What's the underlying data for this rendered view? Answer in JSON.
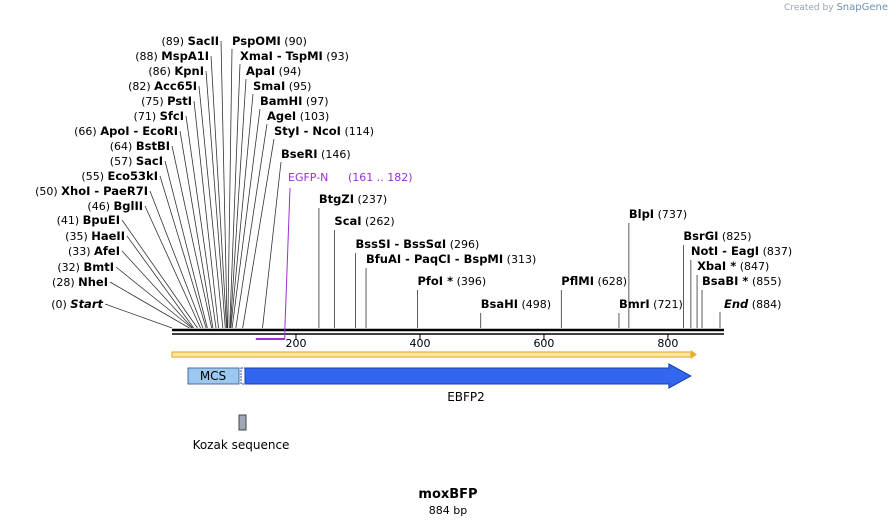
{
  "credit": {
    "prefix": "Created by",
    "brand": "SnapGene"
  },
  "plasmid": {
    "name": "moxBFP",
    "length_label": "884 bp",
    "length": 884
  },
  "colors": {
    "sites": "#000000",
    "primer": "#9b30d0",
    "orf": "#3366ee",
    "mcs": "#9cc8f0",
    "kozak": "#a0a8b8",
    "ruler": "#e8b030"
  },
  "ruler": {
    "ticks": [
      200,
      400,
      600,
      800
    ]
  },
  "sites": [
    {
      "pos": 0,
      "pos_text": "(0)",
      "names": [
        "Start"
      ],
      "italic": true,
      "side": "left"
    },
    {
      "pos": 28,
      "pos_text": "(28)",
      "names": [
        "NheI"
      ],
      "side": "left"
    },
    {
      "pos": 32,
      "pos_text": "(32)",
      "names": [
        "BmtI"
      ],
      "side": "left"
    },
    {
      "pos": 33,
      "pos_text": "(33)",
      "names": [
        "AfeI"
      ],
      "side": "left"
    },
    {
      "pos": 35,
      "pos_text": "(35)",
      "names": [
        "HaeII"
      ],
      "side": "left"
    },
    {
      "pos": 41,
      "pos_text": "(41)",
      "names": [
        "BpuEI"
      ],
      "side": "left"
    },
    {
      "pos": 46,
      "pos_text": "(46)",
      "names": [
        "BglII"
      ],
      "side": "left"
    },
    {
      "pos": 50,
      "pos_text": "(50)",
      "names": [
        "XhoI",
        "PaeR7I"
      ],
      "side": "left"
    },
    {
      "pos": 55,
      "pos_text": "(55)",
      "names": [
        "Eco53kI"
      ],
      "side": "left"
    },
    {
      "pos": 57,
      "pos_text": "(57)",
      "names": [
        "SacI"
      ],
      "side": "left"
    },
    {
      "pos": 64,
      "pos_text": "(64)",
      "names": [
        "BstBI"
      ],
      "side": "left"
    },
    {
      "pos": 66,
      "pos_text": "(66)",
      "names": [
        "ApoI",
        "EcoRI"
      ],
      "side": "left"
    },
    {
      "pos": 71,
      "pos_text": "(71)",
      "names": [
        "SfcI"
      ],
      "side": "left"
    },
    {
      "pos": 75,
      "pos_text": "(75)",
      "names": [
        "PstI"
      ],
      "side": "left"
    },
    {
      "pos": 82,
      "pos_text": "(82)",
      "names": [
        "Acc65I"
      ],
      "side": "left"
    },
    {
      "pos": 86,
      "pos_text": "(86)",
      "names": [
        "KpnI"
      ],
      "side": "left"
    },
    {
      "pos": 88,
      "pos_text": "(88)",
      "names": [
        "MspA1I"
      ],
      "side": "left"
    },
    {
      "pos": 89,
      "pos_text": "(89)",
      "names": [
        "SacII"
      ],
      "side": "left"
    },
    {
      "pos": 90,
      "pos_text": "(90)",
      "names": [
        "PspOMI"
      ],
      "side": "right"
    },
    {
      "pos": 93,
      "pos_text": "(93)",
      "names": [
        "XmaI",
        "TspMI"
      ],
      "side": "right"
    },
    {
      "pos": 94,
      "pos_text": "(94)",
      "names": [
        "ApaI"
      ],
      "side": "right"
    },
    {
      "pos": 95,
      "pos_text": "(95)",
      "names": [
        "SmaI"
      ],
      "side": "right"
    },
    {
      "pos": 97,
      "pos_text": "(97)",
      "names": [
        "BamHI"
      ],
      "side": "right"
    },
    {
      "pos": 103,
      "pos_text": "(103)",
      "names": [
        "AgeI"
      ],
      "side": "right"
    },
    {
      "pos": 114,
      "pos_text": "(114)",
      "names": [
        "StyI",
        "NcoI"
      ],
      "side": "right"
    },
    {
      "pos": 146,
      "pos_text": "(146)",
      "names": [
        "BseRI"
      ],
      "side": "right"
    },
    {
      "pos": 237,
      "pos_text": "(237)",
      "names": [
        "BtgZI"
      ],
      "side": "right"
    },
    {
      "pos": 262,
      "pos_text": "(262)",
      "names": [
        "ScaI"
      ],
      "side": "right"
    },
    {
      "pos": 296,
      "pos_text": "(296)",
      "names": [
        "BssSI",
        "BssSαI"
      ],
      "side": "right"
    },
    {
      "pos": 313,
      "pos_text": "(313)",
      "names": [
        "BfuAI",
        "PaqCI",
        "BspMI"
      ],
      "side": "right"
    },
    {
      "pos": 396,
      "pos_text": "(396)",
      "names": [
        "PfoI *"
      ],
      "side": "right"
    },
    {
      "pos": 498,
      "pos_text": "(498)",
      "names": [
        "BsaHI"
      ],
      "side": "right"
    },
    {
      "pos": 628,
      "pos_text": "(628)",
      "names": [
        "PflMI"
      ],
      "side": "right"
    },
    {
      "pos": 721,
      "pos_text": "(721)",
      "names": [
        "BmrI"
      ],
      "side": "right"
    },
    {
      "pos": 737,
      "pos_text": "(737)",
      "names": [
        "BlpI"
      ],
      "side": "right"
    },
    {
      "pos": 825,
      "pos_text": "(825)",
      "names": [
        "BsrGI"
      ],
      "side": "right"
    },
    {
      "pos": 837,
      "pos_text": "(837)",
      "names": [
        "NotI",
        "EagI"
      ],
      "side": "right"
    },
    {
      "pos": 847,
      "pos_text": "(847)",
      "names": [
        "XbaI *"
      ],
      "side": "right"
    },
    {
      "pos": 855,
      "pos_text": "(855)",
      "names": [
        "BsaBI *"
      ],
      "side": "right"
    },
    {
      "pos": 884,
      "pos_text": "(884)",
      "names": [
        "End"
      ],
      "italic": true,
      "side": "right"
    }
  ],
  "primer": {
    "name": "EGFP-N",
    "range_text": "(161 .. 182)",
    "start": 161,
    "end": 182
  },
  "features": [
    {
      "name": "MCS",
      "start": 28,
      "end": 115,
      "kind": "box"
    },
    {
      "name": "EBFP2",
      "start": 118,
      "end": 837,
      "kind": "arrow"
    },
    {
      "name": "Kozak sequence",
      "start": 112,
      "end": 117,
      "kind": "kozak"
    }
  ]
}
